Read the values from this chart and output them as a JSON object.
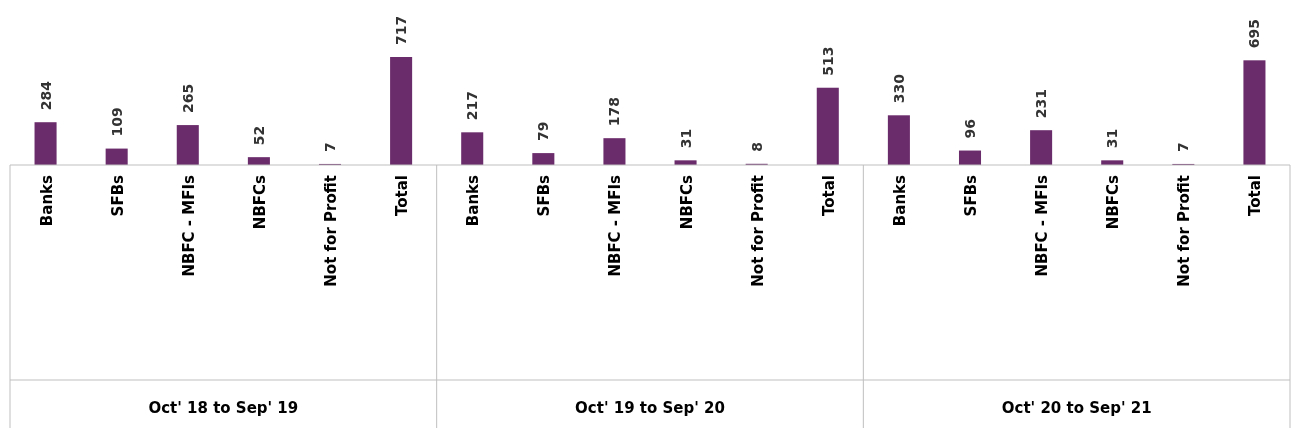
{
  "chart_data": {
    "type": "bar",
    "categories": [
      "Banks",
      "SFBs",
      "NBFC - MFIs",
      "NBFCs",
      "Not for Profit",
      "Total",
      "Banks",
      "SFBs",
      "NBFC - MFIs",
      "NBFCs",
      "Not for Profit",
      "Total",
      "Banks",
      "SFBs",
      "NBFC - MFIs",
      "NBFCs",
      "Not for Profit",
      "Total"
    ],
    "values": [
      284,
      109,
      265,
      52,
      7,
      717,
      217,
      79,
      178,
      31,
      8,
      513,
      330,
      96,
      231,
      31,
      7,
      695
    ],
    "color": "#6b2c6b",
    "data_labels": true,
    "annotations": [
      "Oct' 18 to Sep' 19",
      "Oct' 19 to Sep' 20",
      "Oct' 20 to Sep' 21"
    ]
  }
}
